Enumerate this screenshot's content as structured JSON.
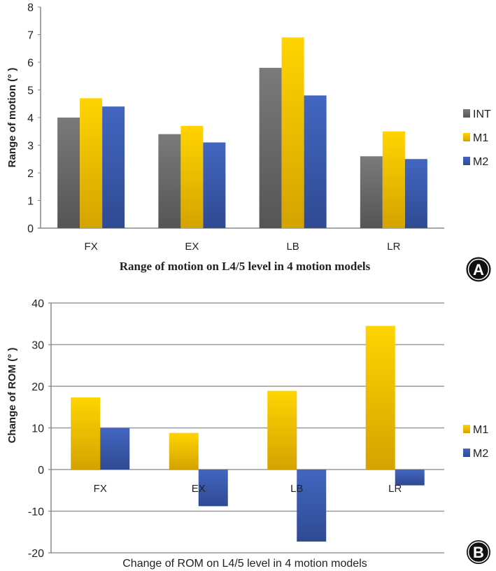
{
  "chart_data": [
    {
      "type": "bar",
      "panel": "A",
      "title": "",
      "xlabel": "Range of motion on L4/5 level in 4 motion models",
      "ylabel": "Range of motion (° )",
      "ylim": [
        0,
        8
      ],
      "yticks": [
        "0",
        "1",
        "2",
        "3",
        "4",
        "5",
        "6",
        "7",
        "8"
      ],
      "grid": false,
      "legend": "right",
      "categories": [
        "FX",
        "EX",
        "LB",
        "LR"
      ],
      "series": [
        {
          "name": "INT",
          "color": "#6d6d6d",
          "values": [
            4.0,
            3.4,
            5.8,
            2.6
          ]
        },
        {
          "name": "M1",
          "color": "#f2c200",
          "values": [
            4.7,
            3.7,
            6.9,
            3.5
          ]
        },
        {
          "name": "M2",
          "color": "#3a5fb5",
          "values": [
            4.4,
            3.1,
            4.8,
            2.5
          ]
        }
      ]
    },
    {
      "type": "bar",
      "panel": "B",
      "title": "",
      "xlabel": "Change of ROM  on L4/5 level in 4 motion models",
      "ylabel": "Change of ROM (° )",
      "ylim": [
        -20,
        40
      ],
      "yticks": [
        "-20",
        "-10",
        "0",
        "10",
        "20",
        "30",
        "40"
      ],
      "grid": true,
      "legend": "right",
      "categories": [
        "FX",
        "EX",
        "LB",
        "LR"
      ],
      "series": [
        {
          "name": "M1",
          "color": "#f2c200",
          "values": [
            17.3,
            8.8,
            18.9,
            34.5
          ]
        },
        {
          "name": "M2",
          "color": "#3a5fb5",
          "values": [
            10.0,
            -8.8,
            -17.3,
            -3.8
          ]
        }
      ]
    }
  ],
  "badges": {
    "a": "A",
    "b": "B"
  }
}
